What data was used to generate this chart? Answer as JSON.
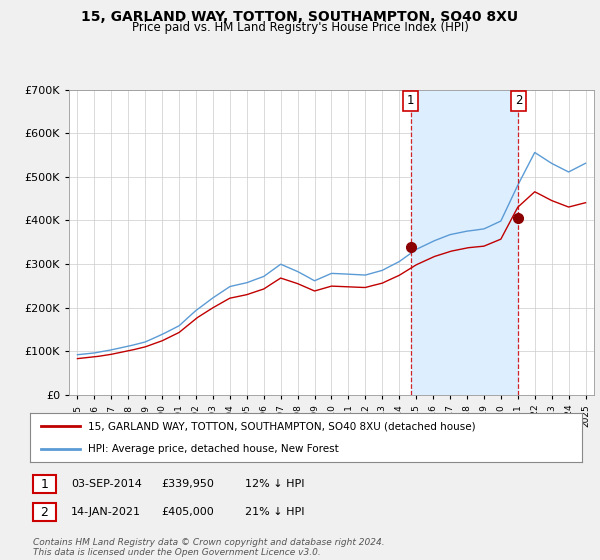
{
  "title": "15, GARLAND WAY, TOTTON, SOUTHAMPTON, SO40 8XU",
  "subtitle": "Price paid vs. HM Land Registry's House Price Index (HPI)",
  "legend_line1": "15, GARLAND WAY, TOTTON, SOUTHAMPTON, SO40 8XU (detached house)",
  "legend_line2": "HPI: Average price, detached house, New Forest",
  "annotation1_label": "1",
  "annotation1_date": "03-SEP-2014",
  "annotation1_price": "£339,950",
  "annotation1_hpi": "12% ↓ HPI",
  "annotation2_label": "2",
  "annotation2_date": "14-JAN-2021",
  "annotation2_price": "£405,000",
  "annotation2_hpi": "21% ↓ HPI",
  "footer": "Contains HM Land Registry data © Crown copyright and database right 2024.\nThis data is licensed under the Open Government Licence v3.0.",
  "hpi_color": "#5b9bd5",
  "price_color": "#c00000",
  "annotation_color": "#8b0000",
  "vline_color": "#cc0000",
  "background_color": "#f0f0f0",
  "plot_bg_color": "#ffffff",
  "highlight_color": "#ddeeff",
  "ylim": [
    0,
    700000
  ],
  "yticks": [
    0,
    100000,
    200000,
    300000,
    400000,
    500000,
    600000,
    700000
  ],
  "sale1_x": 2014.67,
  "sale1_y": 339950,
  "sale2_x": 2021.04,
  "sale2_y": 405000,
  "xmin": 1994.5,
  "xmax": 2025.5
}
